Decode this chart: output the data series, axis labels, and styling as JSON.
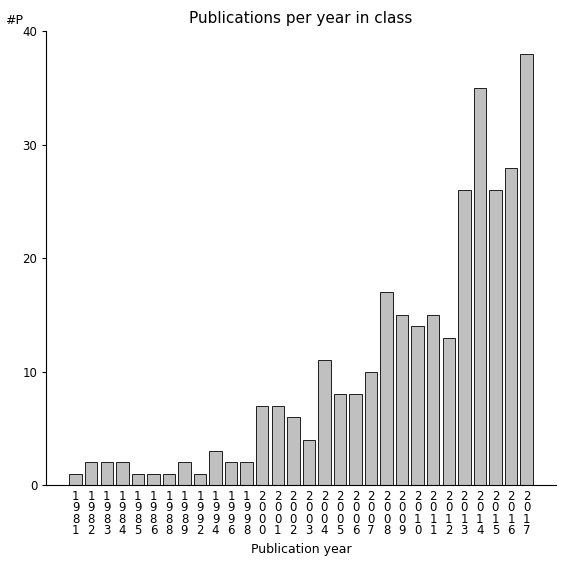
{
  "title": "Publications per year in class",
  "xlabel": "Publication year",
  "ylabel": "#P",
  "ylim": [
    0,
    40
  ],
  "yticks": [
    0,
    10,
    20,
    30,
    40
  ],
  "categories": [
    "1\n9\n8\n1",
    "1\n9\n8\n2",
    "1\n9\n8\n3",
    "1\n9\n8\n4",
    "1\n9\n8\n5",
    "1\n9\n8\n6",
    "1\n9\n8\n8",
    "1\n9\n8\n9",
    "1\n9\n9\n2",
    "1\n9\n9\n4",
    "1\n9\n9\n6",
    "1\n9\n9\n8",
    "2\n0\n0\n0",
    "2\n0\n0\n1",
    "2\n0\n0\n2",
    "2\n0\n0\n3",
    "2\n0\n0\n4",
    "2\n0\n0\n5",
    "2\n0\n0\n6",
    "2\n0\n0\n7",
    "2\n0\n0\n8",
    "2\n0\n0\n9",
    "2\n0\n1\n0",
    "2\n0\n1\n1",
    "2\n0\n1\n2",
    "2\n0\n1\n3",
    "2\n0\n1\n4",
    "2\n0\n1\n5",
    "2\n0\n1\n6",
    "2\n0\n1\n7"
  ],
  "values": [
    1,
    2,
    2,
    2,
    1,
    1,
    1,
    2,
    1,
    3,
    2,
    2,
    7,
    7,
    6,
    4,
    11,
    8,
    8,
    10,
    17,
    15,
    14,
    15,
    13,
    26,
    35,
    26,
    28,
    38
  ],
  "bar_color": "#c0c0c0",
  "bar_edge_color": "#000000",
  "background_color": "#ffffff",
  "title_fontsize": 11,
  "axis_fontsize": 9,
  "tick_fontsize": 8.5
}
